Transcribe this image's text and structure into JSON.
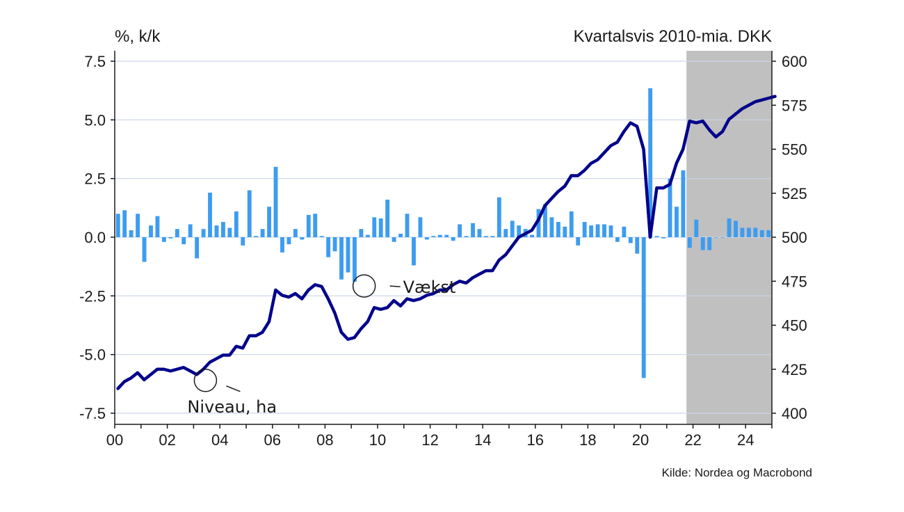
{
  "chart_data": {
    "type": "bar+line",
    "left_axis_unit": "%, k/k",
    "right_axis_title": "Kvartalsvis 2010-mia. DKK",
    "source": "Kilde: Nordea og Macrobond",
    "left_ylim": [
      -7.5,
      7.5
    ],
    "left_yticks": [
      "7.5",
      "5.0",
      "2.5",
      "0.0",
      "-2.5",
      "-5.0",
      "-7.5"
    ],
    "right_ylim": [
      400,
      600
    ],
    "right_yticks": [
      "600",
      "575",
      "550",
      "525",
      "500",
      "475",
      "450",
      "425",
      "400"
    ],
    "xlim": [
      2000,
      2025
    ],
    "xticks": [
      "00",
      "02",
      "04",
      "06",
      "08",
      "10",
      "12",
      "14",
      "16",
      "18",
      "20",
      "22",
      "24"
    ],
    "grid": "horizontal",
    "forecast_shade_from": 2021.75,
    "forecast_color": "#c0c0c0",
    "bar_color": "#3d9cf0",
    "line_color": "#00008b",
    "series": [
      {
        "name": "Vækst",
        "kind": "bar",
        "axis": "left",
        "x": [
          2000.0,
          2000.25,
          2000.5,
          2000.75,
          2001.0,
          2001.25,
          2001.5,
          2001.75,
          2002.0,
          2002.25,
          2002.5,
          2002.75,
          2003.0,
          2003.25,
          2003.5,
          2003.75,
          2004.0,
          2004.25,
          2004.5,
          2004.75,
          2005.0,
          2005.25,
          2005.5,
          2005.75,
          2006.0,
          2006.25,
          2006.5,
          2006.75,
          2007.0,
          2007.25,
          2007.5,
          2007.75,
          2008.0,
          2008.25,
          2008.5,
          2008.75,
          2009.0,
          2009.25,
          2009.5,
          2009.75,
          2010.0,
          2010.25,
          2010.5,
          2010.75,
          2011.0,
          2011.25,
          2011.5,
          2011.75,
          2012.0,
          2012.25,
          2012.5,
          2012.75,
          2013.0,
          2013.25,
          2013.5,
          2013.75,
          2014.0,
          2014.25,
          2014.5,
          2014.75,
          2015.0,
          2015.25,
          2015.5,
          2015.75,
          2016.0,
          2016.25,
          2016.5,
          2016.75,
          2017.0,
          2017.25,
          2017.5,
          2017.75,
          2018.0,
          2018.25,
          2018.5,
          2018.75,
          2019.0,
          2019.25,
          2019.5,
          2019.75,
          2020.0,
          2020.25,
          2020.5,
          2020.75,
          2021.0,
          2021.25,
          2021.5,
          2021.75,
          2022.0,
          2022.25,
          2022.5,
          2022.75,
          2023.0,
          2023.25,
          2023.5,
          2023.75,
          2024.0,
          2024.25,
          2024.5,
          2024.75
        ],
        "values": [
          1.0,
          1.15,
          0.3,
          1.0,
          -1.05,
          0.5,
          0.9,
          -0.2,
          -0.05,
          0.35,
          -0.3,
          0.55,
          -0.9,
          0.35,
          1.9,
          0.5,
          0.65,
          0.4,
          1.1,
          -0.35,
          2.0,
          0.05,
          0.35,
          1.3,
          3.0,
          -0.65,
          -0.3,
          0.35,
          -0.1,
          0.95,
          1.0,
          0.05,
          -0.85,
          -0.6,
          -1.8,
          -1.5,
          -1.9,
          0.35,
          0.1,
          0.85,
          0.8,
          1.6,
          -0.2,
          0.15,
          1.0,
          -1.2,
          0.85,
          -0.1,
          0.05,
          0.1,
          0.1,
          -0.15,
          0.55,
          0.05,
          0.6,
          0.35,
          0.05,
          0.05,
          1.7,
          0.35,
          0.7,
          0.5,
          0.35,
          0.1,
          1.2,
          1.4,
          0.85,
          0.65,
          0.45,
          1.1,
          -0.35,
          0.65,
          0.5,
          0.55,
          0.55,
          0.5,
          -0.2,
          0.45,
          -0.25,
          -0.7,
          -6.0,
          6.35,
          0.05,
          -0.05,
          2.5,
          1.3,
          2.85,
          -0.45,
          0.75,
          -0.55,
          -0.55,
          0.0,
          0.0,
          0.8,
          0.7,
          0.4,
          0.4,
          0.4,
          0.3,
          0.3
        ]
      },
      {
        "name": "Niveau, ha",
        "kind": "line",
        "axis": "right",
        "x": [
          2000.0,
          2000.25,
          2000.5,
          2000.75,
          2001.0,
          2001.25,
          2001.5,
          2001.75,
          2002.0,
          2002.25,
          2002.5,
          2002.75,
          2003.0,
          2003.25,
          2003.5,
          2003.75,
          2004.0,
          2004.25,
          2004.5,
          2004.75,
          2005.0,
          2005.25,
          2005.5,
          2005.75,
          2006.0,
          2006.25,
          2006.5,
          2006.75,
          2007.0,
          2007.25,
          2007.5,
          2007.75,
          2008.0,
          2008.25,
          2008.5,
          2008.75,
          2009.0,
          2009.25,
          2009.5,
          2009.75,
          2010.0,
          2010.25,
          2010.5,
          2010.75,
          2011.0,
          2011.25,
          2011.5,
          2011.75,
          2012.0,
          2012.25,
          2012.5,
          2012.75,
          2013.0,
          2013.25,
          2013.5,
          2013.75,
          2014.0,
          2014.25,
          2014.5,
          2014.75,
          2015.0,
          2015.25,
          2015.5,
          2015.75,
          2016.0,
          2016.25,
          2016.5,
          2016.75,
          2017.0,
          2017.25,
          2017.5,
          2017.75,
          2018.0,
          2018.25,
          2018.5,
          2018.75,
          2019.0,
          2019.25,
          2019.5,
          2019.75,
          2020.0,
          2020.25,
          2020.5,
          2020.75,
          2021.0,
          2021.25,
          2021.5,
          2021.75,
          2022.0,
          2022.25,
          2022.5,
          2022.75,
          2023.0,
          2023.25,
          2023.5,
          2023.75,
          2024.0,
          2024.25,
          2024.5,
          2024.75,
          2025.0
        ],
        "values": [
          414,
          418,
          420,
          423,
          419,
          422,
          425,
          425,
          424,
          425,
          426,
          424,
          422,
          425,
          429,
          431,
          433,
          433,
          438,
          437,
          444,
          444,
          446,
          452,
          470,
          467,
          466,
          468,
          465,
          470,
          473,
          472,
          465,
          457,
          446,
          442,
          443,
          448,
          452,
          460,
          459,
          460,
          464,
          461,
          465,
          464,
          465,
          467,
          468,
          470,
          470,
          473,
          475,
          474,
          477,
          479,
          481,
          481,
          487,
          490,
          495,
          500,
          502,
          504,
          510,
          518,
          522,
          526,
          529,
          535,
          535,
          538,
          542,
          544,
          548,
          552,
          554,
          560,
          565,
          563,
          550,
          500,
          528,
          528,
          530,
          542,
          550,
          566,
          565,
          566,
          561,
          557,
          560,
          567,
          570,
          573,
          575,
          577,
          578,
          579,
          580
        ]
      }
    ],
    "annotations": [
      {
        "text": "Vækst",
        "target": "bar",
        "x": 2009.25,
        "y": -1.9
      },
      {
        "text": "Niveau, ha",
        "target": "line",
        "x": 2003.0,
        "y": 423
      }
    ]
  }
}
